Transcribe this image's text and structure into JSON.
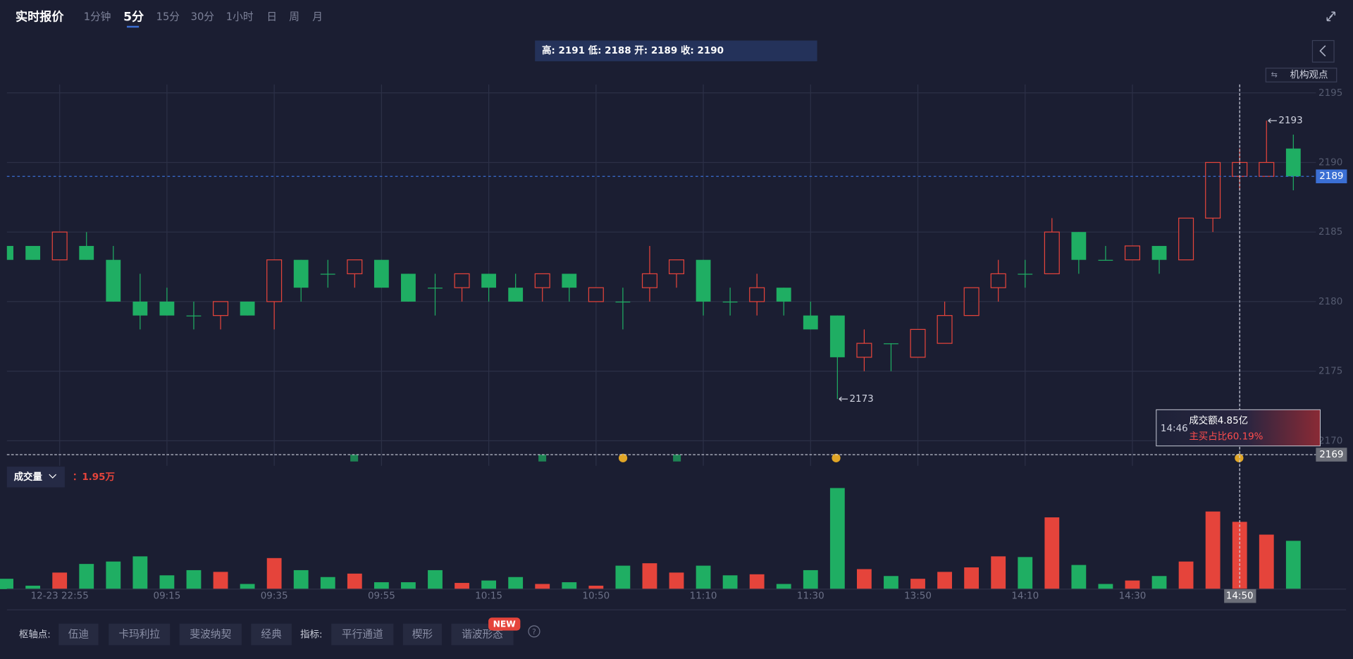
{
  "header": {
    "title": "实时报价",
    "tabs": [
      "1分钟",
      "5分",
      "15分",
      "30分",
      "1小时",
      "日",
      "周",
      "月"
    ],
    "active_tab": 1,
    "button": "机构观点"
  },
  "chart_data": {
    "type": "candlestick",
    "info": "高: 2191 低: 2188 开: 2189 收: 2190",
    "categories": [
      null,
      null,
      "12-23 22:55",
      null,
      null,
      null,
      "09:15",
      null,
      null,
      null,
      "09:35",
      null,
      null,
      null,
      "09:55",
      null,
      null,
      null,
      "10:15",
      null,
      null,
      null,
      "10:50",
      null,
      null,
      null,
      "11:10",
      null,
      null,
      null,
      "11:30",
      null,
      null,
      null,
      "13:50",
      null,
      null,
      null,
      "14:10",
      null,
      null,
      null,
      "14:30",
      null,
      null,
      null,
      "14:50",
      null,
      null
    ],
    "open": [
      2184,
      2184,
      2183,
      2184,
      2183,
      2180,
      2180,
      2179,
      2179,
      2180,
      2180,
      2183,
      2182,
      2182,
      2183,
      2182,
      2181,
      2181,
      2182,
      2181,
      2181,
      2182,
      2180,
      2180,
      2181,
      2182,
      2183,
      2180,
      2180,
      2181,
      2179,
      2179,
      2176,
      2177,
      2176,
      2177,
      2179,
      2181,
      2182,
      2182,
      2185,
      2183,
      2183,
      2184,
      2183,
      2186,
      2189,
      2189,
      2191
    ],
    "high": [
      2184,
      2184,
      2185,
      2185,
      2184,
      2182,
      2181,
      2180,
      2180,
      2180,
      2183,
      2183,
      2183,
      2183,
      2183,
      2182,
      2182,
      2182,
      2182,
      2182,
      2182,
      2182,
      2181,
      2181,
      2184,
      2183,
      2183,
      2181,
      2182,
      2181,
      2180,
      2179,
      2178,
      2177,
      2178,
      2180,
      2181,
      2183,
      2183,
      2186,
      2185,
      2184,
      2184,
      2184,
      2186,
      2190,
      2191,
      2193,
      2192
    ],
    "low": [
      2183,
      2183,
      2183,
      2183,
      2180,
      2178,
      2179,
      2178,
      2178,
      2179,
      2178,
      2180,
      2181,
      2181,
      2181,
      2180,
      2179,
      2180,
      2180,
      2180,
      2180,
      2180,
      2180,
      2178,
      2180,
      2181,
      2179,
      2179,
      2179,
      2179,
      2178,
      2173,
      2175,
      2175,
      2176,
      2177,
      2179,
      2180,
      2181,
      2182,
      2182,
      2183,
      2183,
      2182,
      2183,
      2185,
      2188,
      2189,
      2188
    ],
    "close": [
      2183,
      2183,
      2185,
      2183,
      2180,
      2179,
      2179,
      2179,
      2180,
      2179,
      2183,
      2181,
      2182,
      2183,
      2181,
      2180,
      2181,
      2182,
      2181,
      2180,
      2182,
      2181,
      2181,
      2180,
      2182,
      2183,
      2180,
      2180,
      2181,
      2180,
      2178,
      2176,
      2177,
      2177,
      2178,
      2179,
      2181,
      2182,
      2182,
      2185,
      2183,
      2183,
      2184,
      2183,
      2186,
      2190,
      2190,
      2190,
      2189
    ],
    "up_color": "#e5443b",
    "down_color": "#1fae63",
    "ylim": [
      2168.2,
      2195.6
    ],
    "yticks": [
      2170,
      2175,
      2180,
      2185,
      2190,
      2195
    ],
    "grid": true,
    "crosshair": {
      "index": 46,
      "price": 2169
    },
    "tooltip": {
      "time": "14:46",
      "amount": "成交额4.85亿",
      "ratio": "主买占比60.19%"
    },
    "volume": {
      "title": "成交量",
      "value_label": "：1.95万",
      "values": [
        0.3,
        0.1,
        0.48,
        0.73,
        0.8,
        0.95,
        0.4,
        0.55,
        0.5,
        0.15,
        0.9,
        0.55,
        0.35,
        0.45,
        0.2,
        0.2,
        0.55,
        0.18,
        0.25,
        0.35,
        0.15,
        0.2,
        0.1,
        0.68,
        0.75,
        0.48,
        0.68,
        0.4,
        0.43,
        0.15,
        0.55,
        2.93,
        0.58,
        0.38,
        0.3,
        0.5,
        0.63,
        0.95,
        0.93,
        2.08,
        0.7,
        0.15,
        0.25,
        0.38,
        0.8,
        2.25,
        1.95,
        1.58,
        1.4
      ],
      "ylim": [
        0,
        3.45
      ]
    }
  },
  "footer": {
    "pivot_label": "枢轴点:",
    "pivots": [
      "伍迪",
      "卡玛利拉",
      "斐波纳契",
      "经典"
    ],
    "indicator_label": "指标:",
    "indicators": [
      "平行通道",
      "楔形",
      "谐波形态"
    ],
    "badge": "NEW"
  }
}
